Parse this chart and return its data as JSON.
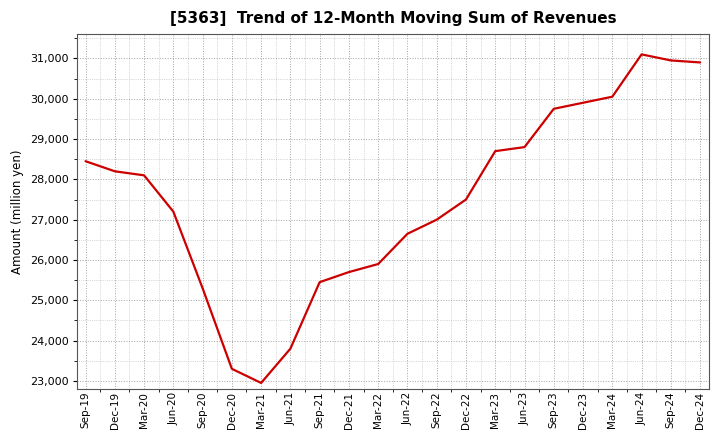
{
  "title": "[5363]  Trend of 12-Month Moving Sum of Revenues",
  "ylabel": "Amount (million yen)",
  "line_color": "#cc0000",
  "background_color": "#ffffff",
  "plot_bg_color": "#ffffff",
  "grid_color": "#999999",
  "ylim": [
    22800,
    31600
  ],
  "yticks": [
    23000,
    24000,
    25000,
    26000,
    27000,
    28000,
    29000,
    30000,
    31000
  ],
  "labels": [
    "Sep-19",
    "Dec-19",
    "Mar-20",
    "Jun-20",
    "Sep-20",
    "Dec-20",
    "Mar-21",
    "Jun-21",
    "Sep-21",
    "Dec-21",
    "Mar-22",
    "Jun-22",
    "Sep-22",
    "Dec-22",
    "Mar-23",
    "Jun-23",
    "Sep-23",
    "Dec-23",
    "Mar-24",
    "Jun-24",
    "Sep-24",
    "Dec-24"
  ],
  "values": [
    28450,
    28200,
    28100,
    27200,
    25300,
    23300,
    22950,
    23800,
    25450,
    25700,
    25900,
    26650,
    27000,
    27500,
    28700,
    28800,
    29750,
    29900,
    30050,
    31100,
    30950,
    30900
  ]
}
